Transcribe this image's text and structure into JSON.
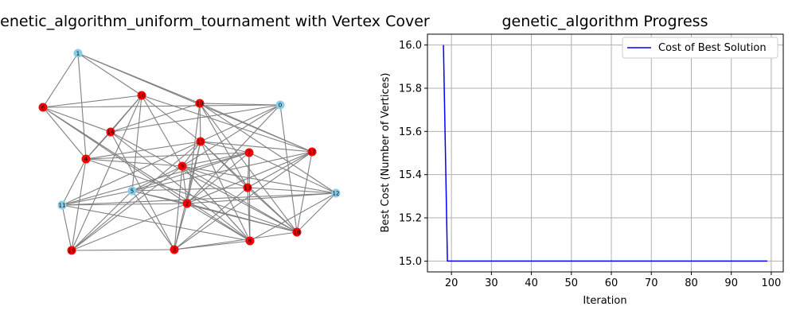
{
  "left_title": "Graph_genetic_algorithm_uniform_tournament with Vertex Cover",
  "right_title": "genetic_algorithm Progress",
  "colors": {
    "cover": "#ff0000",
    "noncover": "#87ceeb",
    "edge": "#808080",
    "line": "#0000ff",
    "grid": "#b0b0b0"
  },
  "chart_data": [
    {
      "type": "network",
      "title": "Graph_genetic_algorithm_uniform_tournament with Vertex Cover",
      "nodes": [
        {
          "id": "0",
          "in_cover": false
        },
        {
          "id": "1",
          "in_cover": false
        },
        {
          "id": "2",
          "in_cover": true
        },
        {
          "id": "3",
          "in_cover": true
        },
        {
          "id": "4",
          "in_cover": true
        },
        {
          "id": "5",
          "in_cover": false
        },
        {
          "id": "6",
          "in_cover": true
        },
        {
          "id": "7",
          "in_cover": true
        },
        {
          "id": "8",
          "in_cover": true
        },
        {
          "id": "9",
          "in_cover": true
        },
        {
          "id": "10",
          "in_cover": true
        },
        {
          "id": "11",
          "in_cover": false
        },
        {
          "id": "12",
          "in_cover": false
        },
        {
          "id": "13",
          "in_cover": true
        },
        {
          "id": "14",
          "in_cover": true
        },
        {
          "id": "15",
          "in_cover": true
        },
        {
          "id": "16",
          "in_cover": true
        },
        {
          "id": "17",
          "in_cover": true
        },
        {
          "id": "18",
          "in_cover": true
        },
        {
          "id": "19",
          "in_cover": true
        }
      ],
      "edges": [
        [
          "1",
          "6"
        ],
        [
          "1",
          "17"
        ],
        [
          "1",
          "16"
        ],
        [
          "1",
          "4"
        ],
        [
          "1",
          "10"
        ],
        [
          "6",
          "4"
        ],
        [
          "6",
          "16"
        ],
        [
          "6",
          "14"
        ],
        [
          "6",
          "8"
        ],
        [
          "6",
          "2"
        ],
        [
          "6",
          "0"
        ],
        [
          "17",
          "16"
        ],
        [
          "17",
          "10"
        ],
        [
          "17",
          "18"
        ],
        [
          "17",
          "2"
        ],
        [
          "17",
          "15"
        ],
        [
          "17",
          "13"
        ],
        [
          "17",
          "5"
        ],
        [
          "17",
          "3"
        ],
        [
          "16",
          "4"
        ],
        [
          "16",
          "14"
        ],
        [
          "16",
          "19"
        ],
        [
          "16",
          "5"
        ],
        [
          "16",
          "9"
        ],
        [
          "16",
          "15"
        ],
        [
          "10",
          "14"
        ],
        [
          "10",
          "15"
        ],
        [
          "10",
          "2"
        ],
        [
          "10",
          "18"
        ],
        [
          "10",
          "0"
        ],
        [
          "10",
          "13"
        ],
        [
          "10",
          "12"
        ],
        [
          "0",
          "14"
        ],
        [
          "0",
          "18"
        ],
        [
          "0",
          "9"
        ],
        [
          "0",
          "15"
        ],
        [
          "0",
          "2"
        ],
        [
          "14",
          "8"
        ],
        [
          "14",
          "4"
        ],
        [
          "14",
          "18"
        ],
        [
          "14",
          "3"
        ],
        [
          "4",
          "18"
        ],
        [
          "4",
          "19"
        ],
        [
          "4",
          "15"
        ],
        [
          "4",
          "11"
        ],
        [
          "4",
          "9"
        ],
        [
          "4",
          "7"
        ],
        [
          "18",
          "15"
        ],
        [
          "18",
          "12"
        ],
        [
          "18",
          "2"
        ],
        [
          "18",
          "5"
        ],
        [
          "18",
          "9"
        ],
        [
          "18",
          "13"
        ],
        [
          "18",
          "3"
        ],
        [
          "15",
          "8"
        ],
        [
          "15",
          "9"
        ],
        [
          "15",
          "19"
        ],
        [
          "15",
          "13"
        ],
        [
          "15",
          "7"
        ],
        [
          "15",
          "11"
        ],
        [
          "15",
          "2"
        ],
        [
          "15",
          "3"
        ],
        [
          "9",
          "2"
        ],
        [
          "9",
          "13"
        ],
        [
          "9",
          "8"
        ],
        [
          "9",
          "12"
        ],
        [
          "9",
          "7"
        ],
        [
          "9",
          "5"
        ],
        [
          "9",
          "3"
        ],
        [
          "13",
          "12"
        ],
        [
          "13",
          "7"
        ],
        [
          "13",
          "5"
        ],
        [
          "13",
          "3"
        ],
        [
          "13",
          "8"
        ],
        [
          "5",
          "7"
        ],
        [
          "5",
          "2"
        ],
        [
          "5",
          "3"
        ],
        [
          "5",
          "19"
        ],
        [
          "5",
          "11"
        ],
        [
          "2",
          "11"
        ],
        [
          "2",
          "3"
        ],
        [
          "2",
          "8"
        ],
        [
          "2",
          "12"
        ],
        [
          "2",
          "7"
        ],
        [
          "2",
          "19"
        ],
        [
          "11",
          "19"
        ],
        [
          "11",
          "7"
        ],
        [
          "11",
          "12"
        ],
        [
          "11",
          "8"
        ],
        [
          "19",
          "3"
        ],
        [
          "19",
          "9"
        ],
        [
          "3",
          "8"
        ],
        [
          "8",
          "7"
        ],
        [
          "7",
          "12"
        ],
        [
          "12",
          "8"
        ],
        [
          "8",
          "9"
        ]
      ]
    },
    {
      "type": "line",
      "title": "genetic_algorithm Progress",
      "xlabel": "Iteration",
      "ylabel": "Best Cost (Number of Vertices)",
      "xlim": [
        14,
        103
      ],
      "ylim": [
        14.95,
        16.05
      ],
      "xticks": [
        "20",
        "30",
        "40",
        "50",
        "60",
        "70",
        "80",
        "90",
        "100"
      ],
      "yticks": [
        "15.0",
        "15.2",
        "15.4",
        "15.6",
        "15.8",
        "16.0"
      ],
      "grid": true,
      "legend_position": "upper right",
      "series": [
        {
          "name": "Cost of Best Solution",
          "x": [
            18,
            19,
            99
          ],
          "y": [
            16,
            15,
            15
          ]
        }
      ]
    }
  ]
}
